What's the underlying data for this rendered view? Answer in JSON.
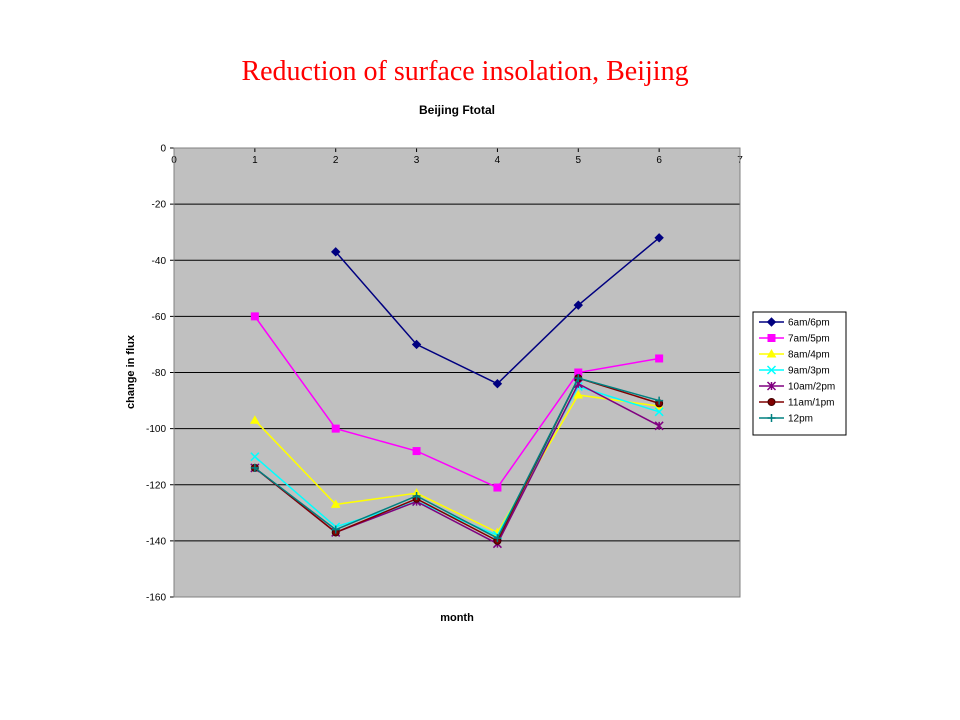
{
  "slide": {
    "title": "Reduction of surface insolation, Beijing"
  },
  "chart_data": {
    "type": "line",
    "title": "Beijing Ftotal",
    "xlabel": "month",
    "ylabel": "change in flux",
    "xlim": [
      0,
      7
    ],
    "ylim": [
      -160,
      0
    ],
    "xticks": [
      0,
      1,
      2,
      3,
      4,
      5,
      6,
      7
    ],
    "yticks": [
      0,
      -20,
      -40,
      -60,
      -80,
      -100,
      -120,
      -140,
      -160
    ],
    "grid": "horizontal",
    "legend": "right",
    "plot_background": "#c0c0c0",
    "series": [
      {
        "name": "6am/6pm",
        "color": "#000080",
        "marker": "diamond",
        "x": [
          2,
          3,
          4,
          5,
          6
        ],
        "y": [
          -37,
          -70,
          -84,
          -56,
          -32
        ]
      },
      {
        "name": "7am/5pm",
        "color": "#ff00ff",
        "marker": "square",
        "x": [
          1,
          2,
          3,
          4,
          5,
          6
        ],
        "y": [
          -60,
          -100,
          -108,
          -121,
          -80,
          -75
        ]
      },
      {
        "name": "8am/4pm",
        "color": "#ffff00",
        "marker": "triangle",
        "x": [
          1,
          2,
          3,
          4,
          5,
          6
        ],
        "y": [
          -97,
          -127,
          -123,
          -137,
          -88,
          -92
        ]
      },
      {
        "name": "9am/3pm",
        "color": "#00ffff",
        "marker": "x",
        "x": [
          1,
          2,
          3,
          4,
          5,
          6
        ],
        "y": [
          -110,
          -135,
          -126,
          -138,
          -85,
          -94
        ]
      },
      {
        "name": "10am/2pm",
        "color": "#800080",
        "marker": "star",
        "x": [
          1,
          2,
          3,
          4,
          5,
          6
        ],
        "y": [
          -114,
          -137,
          -126,
          -141,
          -84,
          -99
        ]
      },
      {
        "name": "11am/1pm",
        "color": "#800000",
        "marker": "circle",
        "x": [
          1,
          2,
          3,
          4,
          5,
          6
        ],
        "y": [
          -114,
          -137,
          -125,
          -140,
          -82,
          -91
        ]
      },
      {
        "name": "12pm",
        "color": "#008080",
        "marker": "plus",
        "x": [
          1,
          2,
          3,
          4,
          5,
          6
        ],
        "y": [
          -114,
          -136,
          -124,
          -139,
          -82,
          -90
        ]
      }
    ]
  }
}
